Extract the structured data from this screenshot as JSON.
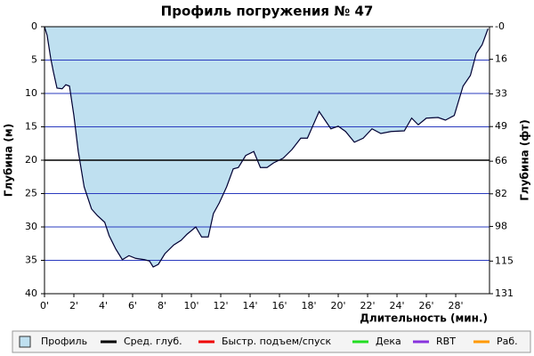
{
  "chart_data": {
    "type": "area",
    "title": "Профиль погружения № 47",
    "x_label": "Длительность (мин.)",
    "y_label": "Глубина (м)",
    "y2_label": "Глубина (фт)",
    "xlim": [
      0,
      30.3
    ],
    "xticks": [
      {
        "value": 0,
        "label": "0'"
      },
      {
        "value": 2,
        "label": "2'"
      },
      {
        "value": 4,
        "label": "4'"
      },
      {
        "value": 6,
        "label": "6'"
      },
      {
        "value": 8,
        "label": "8'"
      },
      {
        "value": 10,
        "label": "10'"
      },
      {
        "value": 12,
        "label": "12'"
      },
      {
        "value": 14,
        "label": "14'"
      },
      {
        "value": 16,
        "label": "16'"
      },
      {
        "value": 18,
        "label": "18'"
      },
      {
        "value": 20,
        "label": "20'"
      },
      {
        "value": 22,
        "label": "22'"
      },
      {
        "value": 24,
        "label": "24'"
      },
      {
        "value": 26,
        "label": "26'"
      },
      {
        "value": 28,
        "label": "28'"
      }
    ],
    "ylim": [
      0,
      40
    ],
    "yticks": [
      0,
      5,
      10,
      15,
      20,
      25,
      30,
      35,
      40
    ],
    "y2lim": [
      0,
      131
    ],
    "y2ticks": [
      {
        "value": 0,
        "label": "-0"
      },
      16,
      33,
      49,
      66,
      82,
      98,
      115,
      131
    ],
    "y_inverted": true,
    "grid": true,
    "grid_color": "#2a3bbf",
    "series": [
      {
        "name": "Профиль",
        "color": "#bfe0f0",
        "line_color": "#000033",
        "x": [
          0,
          0.18,
          0.42,
          0.6,
          0.85,
          1.2,
          1.45,
          1.7,
          2.0,
          2.3,
          2.7,
          3.2,
          3.6,
          4.1,
          4.4,
          4.85,
          5.3,
          5.75,
          6.2,
          6.8,
          7.15,
          7.4,
          7.75,
          8.2,
          8.8,
          9.3,
          9.7,
          10.3,
          10.7,
          11.15,
          11.5,
          11.9,
          12.4,
          12.85,
          13.2,
          13.7,
          14.25,
          14.7,
          15.15,
          15.6,
          16.25,
          16.85,
          17.45,
          17.9,
          18.3,
          18.7,
          19.1,
          19.5,
          20.0,
          20.5,
          21.1,
          21.7,
          22.3,
          22.9,
          23.6,
          24.5,
          25.0,
          25.45,
          26.0,
          26.8,
          27.3,
          27.9,
          28.5,
          29.0,
          29.4,
          29.8,
          30.2
        ],
        "values": [
          0,
          1.3,
          4.7,
          6.7,
          9.2,
          9.3,
          8.7,
          8.9,
          13.3,
          18.7,
          24,
          27.3,
          28.3,
          29.3,
          31.3,
          33.3,
          34.9,
          34.3,
          34.7,
          34.9,
          35.1,
          36,
          35.6,
          34,
          32.7,
          32,
          31.1,
          30,
          31.5,
          31.5,
          28,
          26.4,
          24,
          21.3,
          21.1,
          19.3,
          18.7,
          21.1,
          21.1,
          20.4,
          19.7,
          18.4,
          16.7,
          16.7,
          14.7,
          12.7,
          14,
          15.3,
          14.9,
          15.7,
          17.3,
          16.7,
          15.3,
          16,
          15.7,
          15.6,
          13.7,
          14.7,
          13.7,
          13.6,
          14,
          13.3,
          8.9,
          7.3,
          4,
          2.7,
          0.3
        ]
      },
      {
        "name": "Сред. глуб.",
        "color": "#000000",
        "value": 20
      },
      {
        "name": "Быстр. подъем/спуск",
        "color": "#ee0000"
      },
      {
        "name": "Дека",
        "color": "#22dd22"
      },
      {
        "name": "RBT",
        "color": "#8833dd"
      },
      {
        "name": "Раб.",
        "color": "#ff9900"
      }
    ]
  }
}
